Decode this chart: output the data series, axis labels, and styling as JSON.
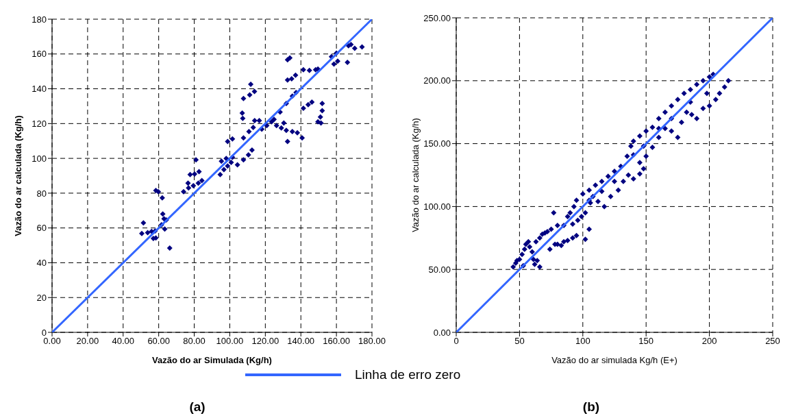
{
  "chart_data": [
    {
      "type": "scatter",
      "title": "(a)",
      "xlabel": "Vazão do ar Simulada (Kg/h)",
      "ylabel": "Vazão do ar calculada (Kg/h)",
      "xlim": [
        0,
        180
      ],
      "ylim": [
        0,
        180
      ],
      "xticks": [
        {
          "value": 0,
          "label": "0.00"
        },
        {
          "value": 20,
          "label": "20.00"
        },
        {
          "value": 40,
          "label": "40.00"
        },
        {
          "value": 60,
          "label": "60.00"
        },
        {
          "value": 80,
          "label": "80.00"
        },
        {
          "value": 100,
          "label": "100.00"
        },
        {
          "value": 120,
          "label": "120.00"
        },
        {
          "value": 140,
          "label": "140.00"
        },
        {
          "value": 160,
          "label": "160.00"
        },
        {
          "value": 180,
          "label": "180.00"
        }
      ],
      "yticks": [
        0,
        20,
        40,
        60,
        80,
        100,
        120,
        140,
        160,
        180
      ],
      "grid": true,
      "legend": "bottom",
      "marker": "diamond",
      "series": [
        {
          "color": "#000080",
          "x": [
            50.5,
            51.4,
            53.8,
            56,
            58,
            57,
            58.4,
            58.4,
            59.8,
            62,
            62.3,
            63,
            64.3,
            61.6,
            63.4,
            66.2,
            74,
            76.8,
            79.5,
            82.3,
            84.3,
            76.5,
            77.7,
            80.2,
            82.7,
            81,
            94.6,
            96.7,
            98.8,
            100.8,
            95.3,
            98,
            101.5,
            104.3,
            107.7,
            110.5,
            112.5,
            98.8,
            101.5,
            107,
            107.3,
            107.7,
            110.8,
            107.7,
            111.2,
            113.9,
            111.8,
            114,
            116.6,
            113.2,
            118,
            120.8,
            123.5,
            124.9,
            126.3,
            129,
            130.4,
            131.8,
            135.2,
            138,
            140.7,
            132.5,
            128.3,
            131.8,
            135.2,
            137.3,
            132.5,
            134.8,
            137,
            132.5,
            133.8,
            141.4,
            144.1,
            146.2,
            141.4,
            144.8,
            148.3,
            149.6,
            149.6,
            151.3,
            151,
            152,
            152,
            157.2,
            160,
            158.6,
            160.7,
            166.2,
            166.8,
            168.2,
            170.3,
            174.4
          ],
          "values": [
            56.8,
            62.9,
            57.3,
            58,
            58.3,
            54,
            54.3,
            81.5,
            80.8,
            77.3,
            68,
            65.3,
            64.6,
            61.8,
            59.4,
            48.4,
            80.8,
            83,
            84.3,
            85.8,
            87.2,
            85.8,
            90.7,
            91,
            92.4,
            99.2,
            90.7,
            93.5,
            95.6,
            97.7,
            98.4,
            99.9,
            100.6,
            96.3,
            99.2,
            102,
            104.8,
            109.7,
            111.2,
            126,
            123,
            111.8,
            115.4,
            134.4,
            136.5,
            138.4,
            142.6,
            121.7,
            121.7,
            117.8,
            116.8,
            118.9,
            121,
            122.4,
            118.9,
            117.5,
            120.3,
            116.1,
            115.4,
            114.7,
            111.8,
            109.7,
            126.6,
            131.6,
            135.8,
            137.9,
            145,
            145.7,
            147.8,
            156.7,
            157.7,
            128.8,
            130.9,
            132.3,
            151,
            150.6,
            151,
            151.3,
            121,
            120.3,
            123.8,
            127.4,
            131.6,
            158.4,
            160.5,
            154.2,
            155.9,
            155.2,
            164.7,
            165.4,
            163.3,
            164
          ]
        },
        {
          "type": "line",
          "marker": "none",
          "name": "Linha de erro zero",
          "color": "#3366ff",
          "x": [
            0,
            180
          ],
          "values": [
            0,
            180
          ]
        }
      ]
    },
    {
      "type": "scatter",
      "title": "(b)",
      "xlabel": "Vazão do ar simulada Kg/h (E+)",
      "ylabel": "Vazão do ar calculada (Kg/h)",
      "xlim": [
        0,
        250
      ],
      "ylim": [
        0,
        250
      ],
      "xticks": [
        0,
        50,
        100,
        150,
        200,
        250
      ],
      "yticks": [
        {
          "value": 0,
          "label": "0.00"
        },
        {
          "value": 50,
          "label": "50.00"
        },
        {
          "value": 100,
          "label": "100.00"
        },
        {
          "value": 150,
          "label": "150.00"
        },
        {
          "value": 200,
          "label": "200.00"
        },
        {
          "value": 250,
          "label": "250.00"
        }
      ],
      "grid": true,
      "marker": "diamond",
      "series": [
        {
          "color": "#000080",
          "x": [
            45,
            47,
            50,
            52,
            54,
            55,
            57,
            58,
            60,
            61,
            62,
            64,
            66,
            53,
            48,
            63,
            66,
            68,
            70,
            72,
            75,
            74,
            78,
            80,
            83,
            85,
            88,
            92,
            95,
            77,
            80,
            85,
            88,
            90,
            93,
            95,
            92,
            96,
            99,
            102,
            105,
            102,
            105,
            106,
            100,
            105,
            110,
            115,
            120,
            125,
            130,
            108,
            112,
            117,
            122,
            128,
            132,
            136,
            140,
            145,
            148,
            135,
            138,
            140,
            145,
            150,
            155,
            160,
            165,
            170,
            175,
            180,
            185,
            190,
            195,
            200,
            203,
            145,
            150,
            155,
            160,
            165,
            170,
            175,
            178,
            182,
            186,
            190,
            195,
            200,
            205,
            208,
            212,
            215,
            198,
            185,
            170,
            160,
            140,
            148,
            125,
            115
          ],
          "values": [
            52,
            55,
            58,
            62,
            66,
            70,
            72,
            68,
            64,
            58,
            54,
            57,
            52,
            53,
            57,
            72,
            75,
            78,
            79,
            80,
            82,
            66,
            70,
            70,
            69,
            72,
            73,
            75,
            77,
            95,
            85,
            85,
            92,
            95,
            100,
            105,
            86,
            89,
            92,
            74,
            82,
            95,
            105,
            103,
            110,
            113,
            117,
            120,
            124,
            128,
            132,
            108,
            104,
            100,
            108,
            113,
            120,
            125,
            122,
            126,
            130,
            140,
            148,
            152,
            156,
            160,
            163,
            170,
            175,
            180,
            185,
            190,
            193,
            197,
            200,
            203,
            205,
            135,
            140,
            147,
            155,
            162,
            160,
            155,
            167,
            175,
            173,
            170,
            178,
            180,
            185,
            190,
            195,
            200,
            190,
            183,
            170,
            162,
            141,
            148,
            120,
            112
          ]
        },
        {
          "type": "line",
          "marker": "none",
          "color": "#3366ff",
          "x": [
            0,
            250
          ],
          "values": [
            0,
            250
          ]
        }
      ]
    }
  ]
}
